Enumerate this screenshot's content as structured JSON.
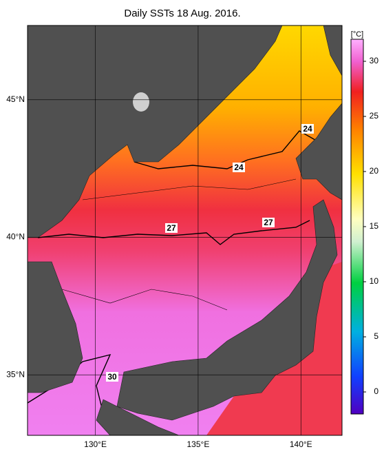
{
  "title": "Daily SSTs 18 Aug. 2016.",
  "map": {
    "lonlim": [
      126.7,
      142
    ],
    "latlim": [
      32.8,
      47.7
    ],
    "lonticks": [
      {
        "value": 130,
        "label": "130°E"
      },
      {
        "value": 135,
        "label": "135°E"
      },
      {
        "value": 140,
        "label": "140°E"
      }
    ],
    "latticks": [
      {
        "value": 45,
        "label": "45°N"
      },
      {
        "value": 40,
        "label": "40°N"
      },
      {
        "value": 35,
        "label": "35°N"
      }
    ],
    "contour_labels": [
      24,
      24,
      27,
      27,
      30
    ]
  },
  "colorbar": {
    "label": "[°C]",
    "range": [
      -2,
      32
    ],
    "ticks": [
      0,
      5,
      10,
      15,
      20,
      25,
      30
    ]
  }
}
